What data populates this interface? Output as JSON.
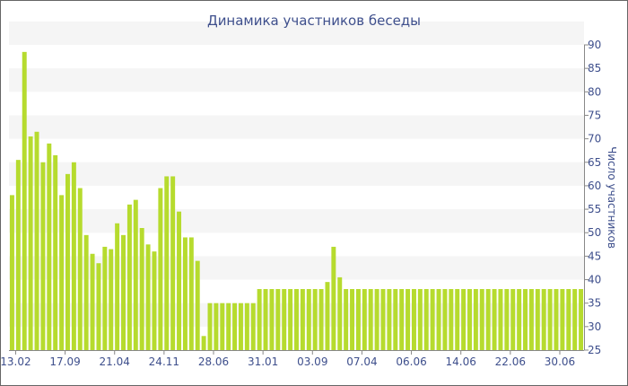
{
  "chart_data": {
    "type": "bar",
    "title": "Динамика участников беседы",
    "xlabel": "",
    "ylabel": "Число участников",
    "ylim": [
      25,
      90
    ],
    "y_ticks": [
      25,
      30,
      35,
      40,
      45,
      50,
      55,
      60,
      65,
      70,
      75,
      80,
      85,
      90
    ],
    "y_axis_side": "right",
    "grid": "alternating horizontal bands",
    "legend": "none",
    "bar_color": "#B6DB2E",
    "band_color": "#F5F5F5",
    "text_color": "#3E4F8C",
    "x_tick_labels": [
      {
        "index": 0,
        "label": "13.02"
      },
      {
        "index": 8,
        "label": "17.09"
      },
      {
        "index": 16,
        "label": "21.04"
      },
      {
        "index": 24,
        "label": "24.11"
      },
      {
        "index": 32,
        "label": "28.06"
      },
      {
        "index": 40,
        "label": "31.01"
      },
      {
        "index": 48,
        "label": "03.09"
      },
      {
        "index": 56,
        "label": "07.04"
      },
      {
        "index": 64,
        "label": "06.06"
      },
      {
        "index": 72,
        "label": "14.06"
      },
      {
        "index": 80,
        "label": "22.06"
      },
      {
        "index": 88,
        "label": "30.06"
      }
    ],
    "values": [
      58,
      65.5,
      88.5,
      70.5,
      71.5,
      65,
      69,
      66.5,
      58,
      62.5,
      65,
      59.5,
      49.5,
      45.5,
      43.5,
      47,
      46.5,
      52,
      49.5,
      56,
      57,
      51,
      47.5,
      46,
      59.5,
      62,
      62,
      54.5,
      49,
      49,
      44,
      28,
      35,
      35,
      35,
      35,
      35,
      35,
      35,
      35,
      38,
      38,
      38,
      38,
      38,
      38,
      38,
      38,
      38,
      38,
      38,
      39.5,
      47,
      40.5,
      38,
      38,
      38,
      38,
      38,
      38,
      38,
      38,
      38,
      38,
      38,
      38,
      38,
      38,
      38,
      38,
      38,
      38,
      38,
      38,
      38,
      38,
      38,
      38,
      38,
      38,
      38,
      38,
      38,
      38,
      38,
      38,
      38,
      38,
      38,
      38,
      38,
      38,
      38
    ]
  }
}
